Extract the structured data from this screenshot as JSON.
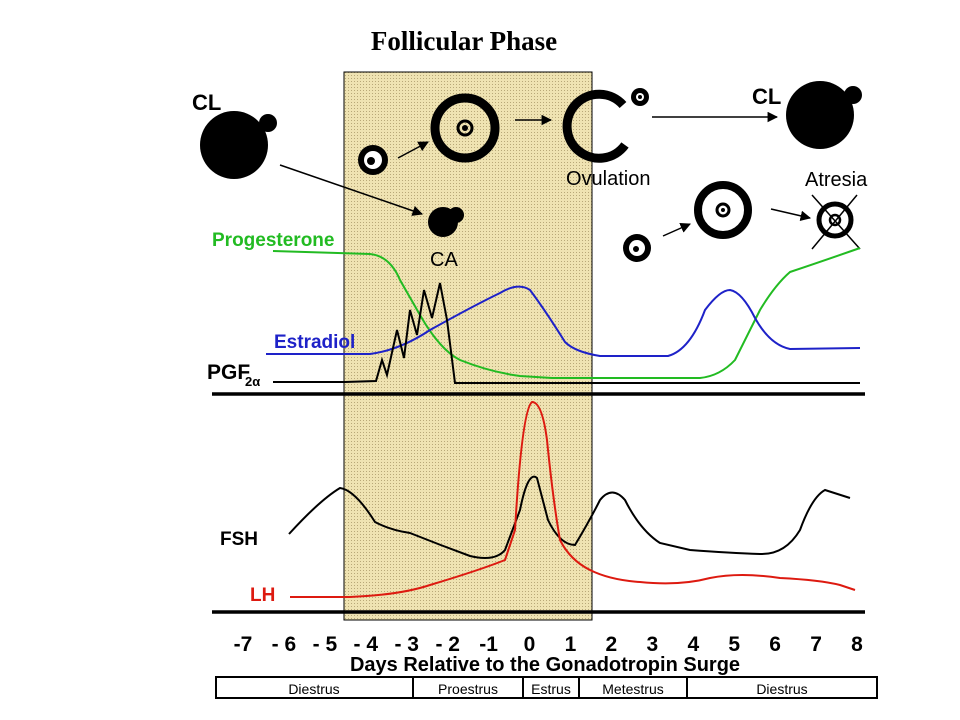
{
  "title": "Follicular Phase",
  "structures": {
    "cl_left": "CL",
    "cl_right": "CL",
    "ovulation": "Ovulation",
    "atresia": "Atresia",
    "ca": "CA"
  },
  "hormones": {
    "progesterone": "Progesterone",
    "estradiol": "Estradiol",
    "pgf_main": "PGF",
    "pgf_sub": "2α",
    "fsh": "FSH",
    "lh": "LH"
  },
  "colors": {
    "progesterone": "#22bb22",
    "estradiol": "#1e22c8",
    "pgf": "#000000",
    "fsh": "#000000",
    "lh": "#dd1a10",
    "shade": "#efe3b2"
  },
  "axis": {
    "ticks": [
      "-7",
      "- 6",
      "- 5",
      "- 4",
      "- 3",
      "- 2",
      "-1",
      "0",
      "1",
      "2",
      "3",
      "4",
      "5",
      "6",
      "7",
      "8"
    ],
    "title": "Days Relative to the Gonadotropin Surge"
  },
  "phases": [
    "Diestrus",
    "Proestrus",
    "Estrus",
    "Metestrus",
    "Diestrus"
  ]
}
